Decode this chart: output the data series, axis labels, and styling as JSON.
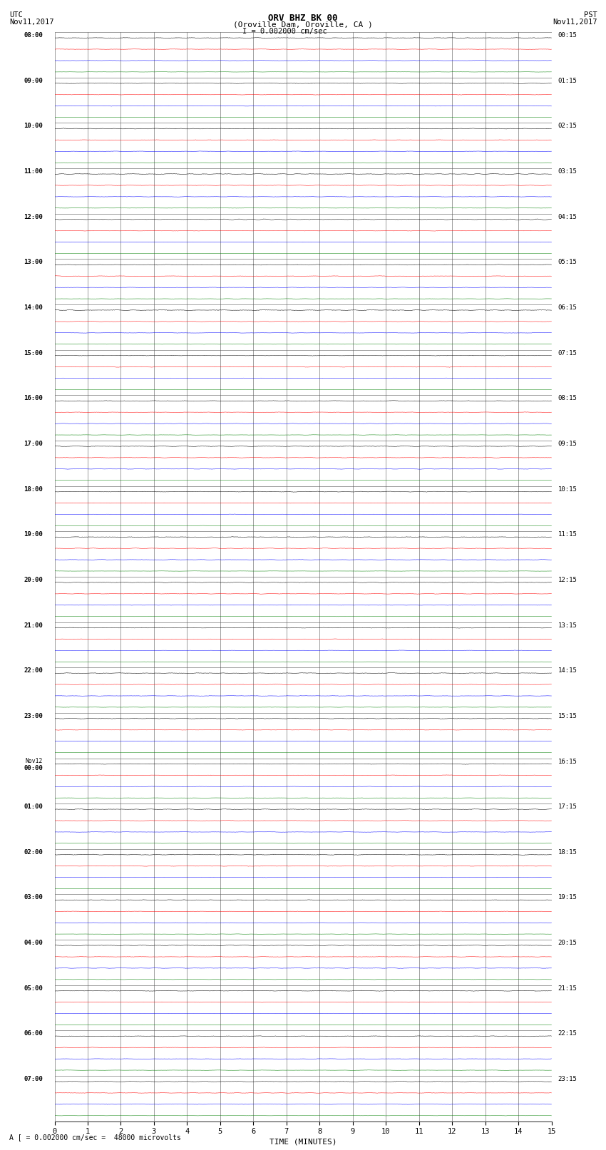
{
  "title_line1": "ORV BHZ BK 00",
  "title_line2": "(Oroville Dam, Oroville, CA )",
  "scale_label": "I = 0.002000 cm/sec",
  "bottom_note": "A [ = 0.002000 cm/sec =  48000 microvolts",
  "left_header": "UTC",
  "left_date": "Nov11,2017",
  "right_header": "PST",
  "right_date": "Nov11,2017",
  "xlabel": "TIME (MINUTES)",
  "utc_times": [
    "08:00",
    "09:00",
    "10:00",
    "11:00",
    "12:00",
    "13:00",
    "14:00",
    "15:00",
    "16:00",
    "17:00",
    "18:00",
    "19:00",
    "20:00",
    "21:00",
    "22:00",
    "23:00",
    "Nov12\n00:00",
    "01:00",
    "02:00",
    "03:00",
    "04:00",
    "05:00",
    "06:00",
    "07:00"
  ],
  "pst_times": [
    "00:15",
    "01:15",
    "02:15",
    "03:15",
    "04:15",
    "05:15",
    "06:15",
    "07:15",
    "08:15",
    "09:15",
    "10:15",
    "11:15",
    "12:15",
    "13:15",
    "14:15",
    "15:15",
    "16:15",
    "17:15",
    "18:15",
    "19:15",
    "20:15",
    "21:15",
    "22:15",
    "23:15"
  ],
  "trace_colors": [
    "black",
    "red",
    "blue",
    "green"
  ],
  "n_hours": 24,
  "n_traces_per_hour": 4,
  "xmin": 0,
  "xmax": 15,
  "xticks": [
    0,
    1,
    2,
    3,
    4,
    5,
    6,
    7,
    8,
    9,
    10,
    11,
    12,
    13,
    14,
    15
  ],
  "bg_color": "white",
  "grid_color": "#777777",
  "amp_black": 0.03,
  "amp_red": 0.022,
  "amp_blue": 0.018,
  "amp_green": 0.012
}
